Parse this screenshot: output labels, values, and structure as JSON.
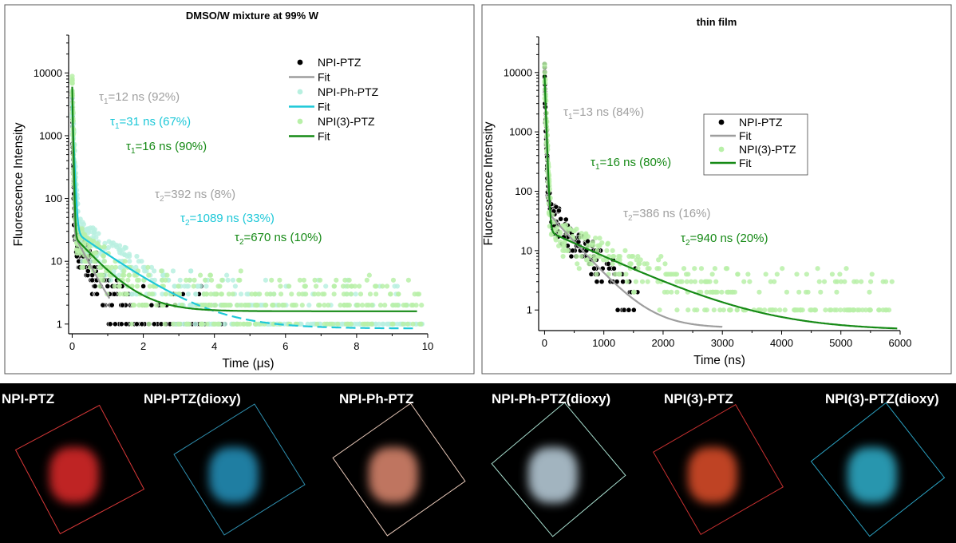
{
  "chart_data": [
    {
      "type": "scatter",
      "title": "DMSO/W mixture at 99% W",
      "xlabel": "Time (μs)",
      "ylabel": "Fluorescence Intensity",
      "x_scale": "linear",
      "y_scale": "log",
      "xlim": [
        -0.1,
        10
      ],
      "ylim": [
        0.7,
        40000
      ],
      "x_ticks": [
        "0",
        "2",
        "4",
        "6",
        "8",
        "10"
      ],
      "y_ticks": [
        "1",
        "10",
        "100",
        "1000",
        "10000"
      ],
      "legend_position": "top-right",
      "legend": [
        {
          "label": "NPI-PTZ",
          "kind": "marker",
          "color": "#000000"
        },
        {
          "label": "Fit",
          "kind": "line",
          "color": "#9e9e9e"
        },
        {
          "label": "NPI-Ph-PTZ",
          "kind": "marker",
          "color": "#b8f0e0"
        },
        {
          "label": "Fit",
          "kind": "line",
          "color": "#1ec8d8"
        },
        {
          "label": "NPI(3)-PTZ",
          "kind": "marker",
          "color": "#b8f0a8"
        },
        {
          "label": "Fit",
          "kind": "line",
          "color": "#168a16"
        }
      ],
      "annotations": [
        {
          "sym": "τ",
          "sub": "1",
          "rest": "=12 ns (92%)",
          "color": "#a0a0a0"
        },
        {
          "sym": "τ",
          "sub": "1",
          "rest": "=31 ns (67%)",
          "color": "#1ec8d8"
        },
        {
          "sym": "τ",
          "sub": "1",
          "rest": "=16 ns (90%)",
          "color": "#168a16"
        },
        {
          "sym": "τ",
          "sub": "2",
          "rest": "=392 ns (8%)",
          "color": "#a0a0a0"
        },
        {
          "sym": "τ",
          "sub": "2",
          "rest": "=1089 ns (33%)",
          "color": "#1ec8d8"
        },
        {
          "sym": "τ",
          "sub": "2",
          "rest": "=670 ns (10%)",
          "color": "#168a16"
        }
      ],
      "series": [
        {
          "name": "NPI-PTZ",
          "color": "#000000",
          "fit_color": "#9e9e9e",
          "fit": {
            "A1": 4000,
            "t1": 0.012,
            "A2": 30,
            "t2": 0.392,
            "c": 0.5,
            "x_end": 1.05
          }
        },
        {
          "name": "NPI-Ph-PTZ",
          "color": "#b8f0e0",
          "fit_color": "#1ec8d8",
          "fit": {
            "A1": 3000,
            "t1": 0.031,
            "A2": 30,
            "t2": 1.089,
            "c": 0.85,
            "x_end": 9.7,
            "dash_after": 3.0
          }
        },
        {
          "name": "NPI(3)-PTZ",
          "color": "#b8f0a8",
          "fit_color": "#168a16",
          "fit": {
            "A1": 6000,
            "t1": 0.016,
            "A2": 25,
            "t2": 0.67,
            "c": 1.6,
            "x_end": 9.7
          }
        }
      ]
    },
    {
      "type": "scatter",
      "title": "thin film",
      "xlabel": "Time (ns)",
      "ylabel": "Fluorescence Intensity",
      "x_scale": "linear",
      "y_scale": "log",
      "xlim": [
        -100,
        6000
      ],
      "ylim": [
        0.45,
        40000
      ],
      "x_ticks": [
        "0",
        "1000",
        "2000",
        "3000",
        "4000",
        "5000",
        "6000"
      ],
      "y_ticks": [
        "1",
        "10",
        "100",
        "1000",
        "10000"
      ],
      "legend_position": "right",
      "legend": [
        {
          "label": "NPI-PTZ",
          "kind": "marker",
          "color": "#000000"
        },
        {
          "label": "Fit",
          "kind": "line",
          "color": "#9e9e9e"
        },
        {
          "label": "NPI(3)-PTZ",
          "kind": "marker",
          "color": "#b8f0a8"
        },
        {
          "label": "Fit",
          "kind": "line",
          "color": "#168a16"
        }
      ],
      "annotations": [
        {
          "sym": "τ",
          "sub": "1",
          "rest": "=13 ns (84%)",
          "color": "#a0a0a0"
        },
        {
          "sym": "τ",
          "sub": "1",
          "rest": "=16 ns (80%)",
          "color": "#168a16"
        },
        {
          "sym": "τ",
          "sub": "2",
          "rest": "=386 ns (16%)",
          "color": "#a0a0a0"
        },
        {
          "sym": "τ",
          "sub": "2",
          "rest": "=940 ns (20%)",
          "color": "#168a16"
        }
      ],
      "series": [
        {
          "name": "NPI-PTZ",
          "color": "#000000",
          "fit_color": "#9e9e9e",
          "fit": {
            "A1": 8000,
            "t1": 13,
            "A2": 50,
            "t2": 386,
            "c": 0.5,
            "x_end": 3000
          }
        },
        {
          "name": "NPI(3)-PTZ",
          "color": "#b8f0a8",
          "fit_color": "#168a16",
          "fit": {
            "A1": 9000,
            "t1": 16,
            "A2": 22,
            "t2": 940,
            "c": 0.45,
            "x_end": 5950
          }
        }
      ]
    }
  ],
  "photos": [
    {
      "label": "NPI-PTZ",
      "color": "#ff3030",
      "frame": "#d83838"
    },
    {
      "label": "NPI-PTZ(dioxy)",
      "color": "#2aa8d8",
      "frame": "#2f90b0"
    },
    {
      "label": "NPI-Ph-PTZ",
      "color": "#ff9d80",
      "frame": "#e8c8b8"
    },
    {
      "label": "NPI-Ph-PTZ(dioxy)",
      "color": "#d8f0ff",
      "frame": "#a8e0d0"
    },
    {
      "label": "NPI(3)-PTZ",
      "color": "#ff5a30",
      "frame": "#c83030"
    },
    {
      "label": "NPI(3)-PTZ(dioxy)",
      "color": "#36c8e8",
      "frame": "#2aa0c0"
    }
  ]
}
